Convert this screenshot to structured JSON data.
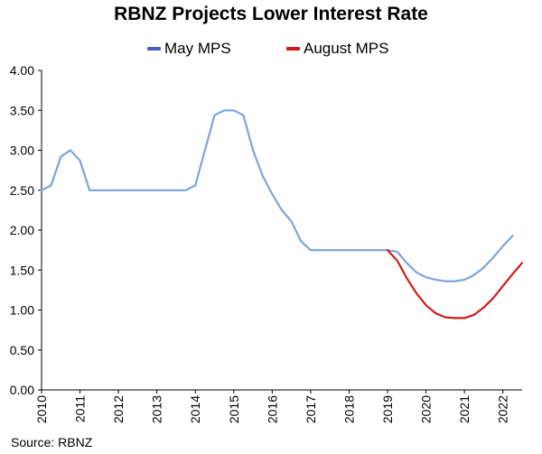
{
  "chart_data": {
    "type": "line",
    "title": "RBNZ Projects Lower Interest Rate",
    "xlabel": "",
    "ylabel": "",
    "ylim": [
      0,
      4
    ],
    "xlim": [
      2010,
      2022.5
    ],
    "yticks": [
      "0.00",
      "0.50",
      "1.00",
      "1.50",
      "2.00",
      "2.50",
      "3.00",
      "3.50",
      "4.00"
    ],
    "xticks": [
      "2010",
      "2011",
      "2012",
      "2013",
      "2014",
      "2015",
      "2016",
      "2017",
      "2018",
      "2019",
      "2020",
      "2021",
      "2022"
    ],
    "legend_position": "top",
    "series": [
      {
        "name": "May MPS",
        "color": "#7ba5d9",
        "legend_color": "#4a5cc4",
        "x": [
          2010.0,
          2010.25,
          2010.5,
          2010.75,
          2011.0,
          2011.25,
          2011.5,
          2011.75,
          2012.0,
          2012.25,
          2012.5,
          2012.75,
          2013.0,
          2013.25,
          2013.5,
          2013.75,
          2014.0,
          2014.25,
          2014.5,
          2014.75,
          2015.0,
          2015.25,
          2015.5,
          2015.75,
          2016.0,
          2016.25,
          2016.5,
          2016.75,
          2017.0,
          2017.25,
          2017.5,
          2017.75,
          2018.0,
          2018.25,
          2018.5,
          2018.75,
          2019.0,
          2019.25,
          2019.5,
          2019.75,
          2020.0,
          2020.25,
          2020.5,
          2020.75,
          2021.0,
          2021.25,
          2021.5,
          2021.75,
          2022.0,
          2022.25
        ],
        "values": [
          2.5,
          2.56,
          2.92,
          3.0,
          2.87,
          2.5,
          2.5,
          2.5,
          2.5,
          2.5,
          2.5,
          2.5,
          2.5,
          2.5,
          2.5,
          2.5,
          2.56,
          3.0,
          3.44,
          3.5,
          3.5,
          3.44,
          3.0,
          2.68,
          2.45,
          2.25,
          2.11,
          1.86,
          1.75,
          1.75,
          1.75,
          1.75,
          1.75,
          1.75,
          1.75,
          1.75,
          1.75,
          1.73,
          1.59,
          1.47,
          1.41,
          1.38,
          1.36,
          1.36,
          1.38,
          1.44,
          1.53,
          1.66,
          1.8,
          1.93
        ]
      },
      {
        "name": "August MPS",
        "color": "#d21a1a",
        "legend_color": "#d21a1a",
        "x": [
          2019.0,
          2019.25,
          2019.5,
          2019.75,
          2020.0,
          2020.25,
          2020.5,
          2020.75,
          2021.0,
          2021.25,
          2021.5,
          2021.75,
          2022.0,
          2022.25,
          2022.5
        ],
        "values": [
          1.75,
          1.62,
          1.4,
          1.21,
          1.06,
          0.96,
          0.91,
          0.9,
          0.9,
          0.94,
          1.03,
          1.15,
          1.3,
          1.45,
          1.59
        ]
      }
    ],
    "source": "Source: RBNZ"
  }
}
